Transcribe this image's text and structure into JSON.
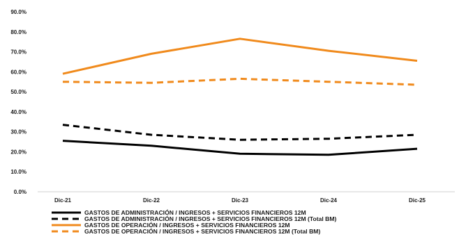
{
  "chart_data": {
    "type": "line",
    "categories": [
      "Dic-21",
      "Dic-22",
      "Dic-23",
      "Dic-24",
      "Dic-25"
    ],
    "ylim": [
      0,
      90
    ],
    "y_ticks": [
      "0.0%",
      "10.0%",
      "20.0%",
      "30.0%",
      "40.0%",
      "50.0%",
      "60.0%",
      "70.0%",
      "80.0%",
      "90.0%"
    ],
    "grid": false,
    "legend_position": "bottom",
    "series": [
      {
        "name": "GASTOS DE ADMINISTRACIÓN / INGRESOS + SERVICIOS FINANCIEROS 12M",
        "values": [
          25.5,
          23.0,
          19.0,
          18.5,
          21.5
        ],
        "color": "#000000",
        "style": "solid"
      },
      {
        "name": "GASTOS DE ADMINISTRACIÓN / INGRESOS + SERVICIOS FINANCIEROS 12M (Total BM)",
        "values": [
          33.5,
          28.5,
          26.0,
          26.5,
          28.5
        ],
        "color": "#000000",
        "style": "dashed"
      },
      {
        "name": "GASTOS DE OPERACIÓN / INGRESOS + SERVICIOS FINANCIEROS 12M",
        "values": [
          59.0,
          69.0,
          76.5,
          70.5,
          65.5
        ],
        "color": "#f08a1c",
        "style": "solid"
      },
      {
        "name": "GASTOS DE OPERACIÓN / INGRESOS + SERVICIOS FINANCIEROS 12M (Total BM)",
        "values": [
          55.0,
          54.5,
          56.5,
          55.0,
          53.5
        ],
        "color": "#f08a1c",
        "style": "dashed"
      }
    ]
  }
}
